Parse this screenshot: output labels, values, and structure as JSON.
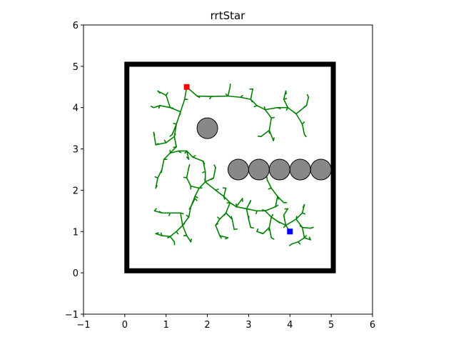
{
  "chart_data": {
    "type": "scatter",
    "title": "rrtStar",
    "xlabel": "",
    "ylabel": "",
    "xlim": [
      -1,
      6
    ],
    "ylim": [
      -1,
      6
    ],
    "xticks": [
      -1,
      0,
      1,
      2,
      3,
      4,
      5,
      6
    ],
    "yticks": [
      -1,
      0,
      1,
      2,
      3,
      4,
      5,
      6
    ],
    "tick_labels_x": [
      "−1",
      "0",
      "1",
      "2",
      "3",
      "4",
      "5",
      "6"
    ],
    "tick_labels_y": [
      "−1",
      "0",
      "1",
      "2",
      "3",
      "4",
      "5",
      "6"
    ],
    "grid": false,
    "colors": {
      "tree": "#008000",
      "obstacle_fill": "#888888",
      "obstacle_edge": "#000000",
      "boundary": "#000000",
      "start": "#ff0000",
      "goal": "#0000ff"
    },
    "boundary": {
      "x_min": 0.05,
      "y_min": 0.05,
      "x_max": 5.05,
      "y_max": 5.05
    },
    "start": {
      "x": 1.5,
      "y": 4.5
    },
    "goal": {
      "x": 4.0,
      "y": 1.0
    },
    "obstacles": [
      {
        "x": 2.0,
        "y": 3.5,
        "r": 0.25
      },
      {
        "x": 2.75,
        "y": 2.5,
        "r": 0.25
      },
      {
        "x": 3.25,
        "y": 2.5,
        "r": 0.25
      },
      {
        "x": 3.75,
        "y": 2.5,
        "r": 0.25
      },
      {
        "x": 4.25,
        "y": 2.5,
        "r": 0.25
      },
      {
        "x": 4.75,
        "y": 2.5,
        "r": 0.25
      }
    ],
    "tree_edges": [
      [
        1.5,
        4.5,
        1.45,
        4.2
      ],
      [
        1.45,
        4.2,
        1.35,
        3.9
      ],
      [
        1.35,
        3.9,
        1.25,
        3.6
      ],
      [
        1.25,
        3.6,
        1.2,
        3.3
      ],
      [
        1.5,
        4.5,
        1.75,
        4.28
      ],
      [
        1.75,
        4.28,
        2.1,
        4.27
      ],
      [
        2.1,
        4.27,
        2.5,
        4.28
      ],
      [
        2.5,
        4.28,
        2.8,
        4.25
      ],
      [
        2.8,
        4.25,
        3.05,
        4.2
      ],
      [
        3.05,
        4.2,
        3.2,
        4.05
      ],
      [
        3.2,
        4.05,
        3.4,
        3.95
      ],
      [
        3.4,
        3.95,
        3.55,
        3.75
      ],
      [
        3.55,
        3.75,
        3.5,
        3.45
      ],
      [
        3.5,
        3.45,
        3.3,
        3.3
      ],
      [
        3.5,
        3.45,
        3.6,
        3.2
      ],
      [
        3.4,
        3.95,
        3.7,
        4.0
      ],
      [
        3.7,
        4.0,
        3.95,
        4.0
      ],
      [
        3.95,
        4.0,
        4.15,
        3.85
      ],
      [
        4.15,
        3.85,
        4.3,
        3.6
      ],
      [
        4.3,
        3.6,
        4.35,
        3.35
      ],
      [
        4.15,
        3.85,
        4.4,
        4.05
      ],
      [
        4.4,
        4.05,
        4.45,
        4.25
      ],
      [
        3.95,
        4.0,
        3.85,
        4.2
      ],
      [
        3.85,
        4.2,
        3.9,
        4.4
      ],
      [
        3.05,
        4.2,
        3.1,
        4.45
      ],
      [
        2.5,
        4.28,
        2.55,
        4.5
      ],
      [
        1.35,
        3.9,
        1.1,
        4.0
      ],
      [
        1.1,
        4.0,
        0.85,
        4.05
      ],
      [
        0.85,
        4.05,
        0.7,
        4.0
      ],
      [
        1.1,
        4.0,
        1.0,
        4.3
      ],
      [
        1.0,
        4.3,
        0.8,
        4.4
      ],
      [
        1.25,
        3.6,
        1.15,
        3.35
      ],
      [
        1.2,
        3.3,
        1.0,
        3.15
      ],
      [
        1.0,
        3.15,
        0.75,
        3.1
      ],
      [
        0.75,
        3.1,
        0.7,
        3.4
      ],
      [
        1.2,
        3.3,
        1.25,
        3.05
      ],
      [
        1.25,
        3.05,
        1.1,
        2.9
      ],
      [
        1.1,
        2.9,
        0.95,
        2.75
      ],
      [
        0.95,
        2.75,
        0.9,
        2.5
      ],
      [
        0.9,
        2.5,
        0.8,
        2.3
      ],
      [
        0.8,
        2.3,
        0.75,
        2.05
      ],
      [
        1.1,
        2.9,
        1.3,
        2.95
      ],
      [
        1.3,
        2.95,
        1.5,
        2.95
      ],
      [
        1.5,
        2.95,
        1.55,
        2.75
      ],
      [
        1.5,
        2.95,
        1.65,
        2.8
      ],
      [
        1.65,
        2.8,
        1.9,
        2.7
      ],
      [
        1.9,
        2.7,
        1.95,
        2.45
      ],
      [
        1.95,
        2.45,
        1.95,
        2.2
      ],
      [
        1.95,
        2.2,
        1.8,
        2.05
      ],
      [
        1.8,
        2.05,
        1.6,
        2.1
      ],
      [
        1.6,
        2.1,
        1.5,
        2.3
      ],
      [
        1.5,
        2.3,
        1.55,
        2.55
      ],
      [
        1.8,
        2.05,
        1.7,
        1.85
      ],
      [
        1.7,
        1.85,
        1.6,
        1.6
      ],
      [
        1.6,
        1.6,
        1.55,
        1.35
      ],
      [
        1.55,
        1.35,
        1.4,
        1.15
      ],
      [
        1.4,
        1.15,
        1.25,
        1.0
      ],
      [
        1.25,
        1.0,
        1.1,
        0.88
      ],
      [
        1.1,
        0.88,
        0.9,
        0.9
      ],
      [
        0.9,
        0.9,
        0.75,
        0.95
      ],
      [
        1.1,
        0.88,
        1.2,
        0.75
      ],
      [
        1.4,
        1.15,
        1.5,
        0.9
      ],
      [
        1.5,
        0.9,
        1.6,
        0.75
      ],
      [
        1.4,
        1.15,
        1.35,
        1.45
      ],
      [
        1.35,
        1.45,
        1.1,
        1.45
      ],
      [
        1.1,
        1.45,
        0.9,
        1.45
      ],
      [
        0.9,
        1.45,
        0.72,
        1.5
      ],
      [
        1.6,
        1.6,
        1.7,
        1.8
      ],
      [
        1.95,
        2.2,
        2.15,
        2.3
      ],
      [
        2.15,
        2.3,
        2.2,
        2.55
      ],
      [
        1.95,
        2.2,
        2.2,
        2.0
      ],
      [
        2.2,
        2.0,
        2.4,
        1.85
      ],
      [
        2.4,
        1.85,
        2.55,
        1.7
      ],
      [
        2.55,
        1.7,
        2.7,
        1.6
      ],
      [
        2.7,
        1.6,
        2.95,
        1.55
      ],
      [
        2.95,
        1.55,
        3.2,
        1.5
      ],
      [
        3.2,
        1.5,
        3.4,
        1.5
      ],
      [
        3.4,
        1.5,
        3.55,
        1.35
      ],
      [
        3.55,
        1.35,
        3.7,
        1.25
      ],
      [
        3.7,
        1.25,
        3.9,
        1.15
      ],
      [
        3.9,
        1.15,
        4.0,
        1.0
      ],
      [
        3.4,
        1.5,
        3.65,
        1.6
      ],
      [
        3.65,
        1.6,
        3.7,
        1.85
      ],
      [
        3.7,
        1.85,
        3.55,
        2.05
      ],
      [
        3.55,
        2.05,
        3.45,
        2.25
      ],
      [
        3.7,
        1.85,
        3.85,
        1.7
      ],
      [
        3.55,
        1.35,
        3.5,
        1.1
      ],
      [
        3.5,
        1.1,
        3.35,
        0.95
      ],
      [
        3.35,
        0.95,
        3.2,
        1.0
      ],
      [
        3.5,
        1.1,
        3.55,
        0.85
      ],
      [
        2.55,
        1.7,
        2.45,
        1.45
      ],
      [
        2.45,
        1.45,
        2.3,
        1.3
      ],
      [
        2.3,
        1.3,
        2.2,
        1.15
      ],
      [
        2.2,
        1.15,
        2.3,
        0.9
      ],
      [
        2.3,
        0.9,
        2.5,
        0.85
      ],
      [
        2.45,
        1.45,
        2.6,
        1.3
      ],
      [
        2.6,
        1.3,
        2.65,
        1.05
      ],
      [
        2.7,
        1.6,
        2.85,
        1.8
      ],
      [
        2.4,
        1.85,
        2.45,
        2.05
      ],
      [
        3.9,
        1.15,
        4.15,
        1.3
      ],
      [
        4.15,
        1.3,
        4.3,
        1.45
      ],
      [
        4.3,
        1.45,
        4.35,
        1.65
      ],
      [
        4.15,
        1.3,
        4.3,
        1.1
      ],
      [
        4.3,
        1.1,
        4.35,
        0.85
      ],
      [
        4.35,
        0.85,
        4.2,
        0.75
      ],
      [
        4.2,
        0.75,
        4.05,
        0.7
      ],
      [
        4.35,
        0.85,
        4.5,
        0.8
      ],
      [
        4.3,
        1.1,
        4.5,
        1.08
      ],
      [
        3.9,
        1.15,
        3.85,
        1.4
      ],
      [
        3.85,
        1.4,
        3.95,
        1.55
      ],
      [
        2.95,
        1.55,
        3.0,
        1.3
      ],
      [
        3.0,
        1.3,
        3.05,
        1.1
      ],
      [
        2.95,
        1.55,
        3.05,
        1.75
      ]
    ]
  }
}
